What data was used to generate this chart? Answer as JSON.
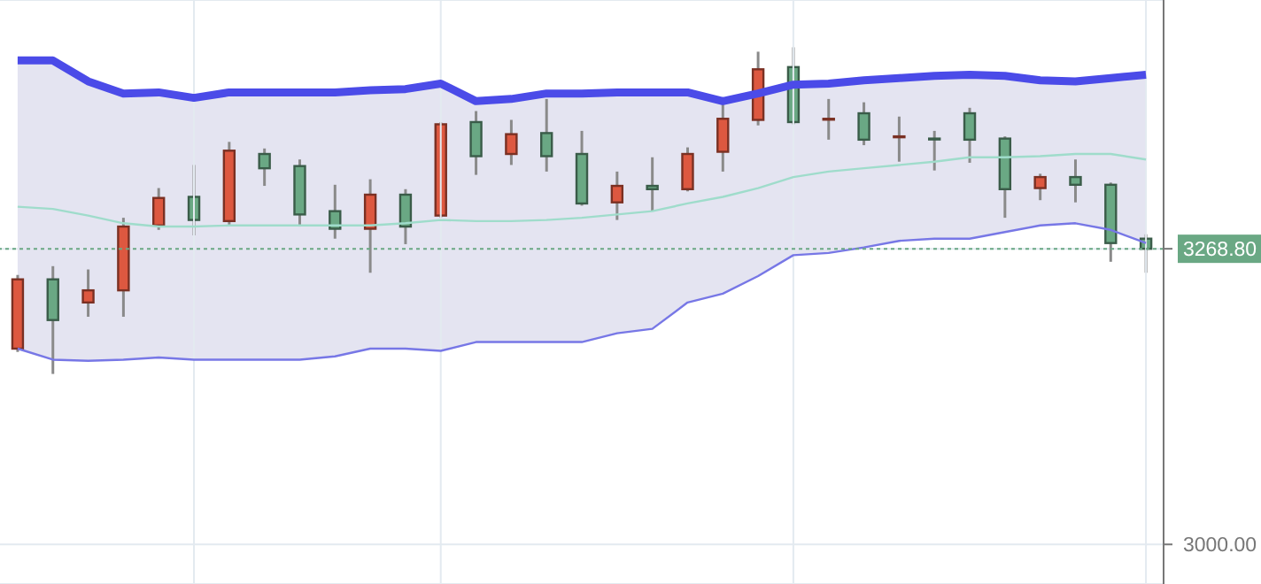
{
  "chart_data": {
    "type": "candlestick",
    "categories": [
      null,
      null,
      null,
      null,
      null,
      null,
      null,
      null,
      null,
      null,
      null,
      null,
      null,
      null,
      null,
      null,
      null,
      null,
      null,
      null,
      null,
      null,
      null,
      null,
      null,
      null,
      null,
      null,
      null,
      null,
      null,
      null,
      null
    ],
    "ohlc": [
      [
        3178,
        3245,
        3175,
        3241
      ],
      [
        3241,
        3253,
        3155,
        3204
      ],
      [
        3220,
        3250,
        3207,
        3231
      ],
      [
        3231,
        3297,
        3207,
        3289
      ],
      [
        3290,
        3324,
        3286,
        3315
      ],
      [
        3316,
        3345,
        3281,
        3295
      ],
      [
        3294,
        3366,
        3290,
        3358
      ],
      [
        3355,
        3360,
        3326,
        3342
      ],
      [
        3344,
        3350,
        3289,
        3300
      ],
      [
        3303,
        3327,
        3278,
        3287
      ],
      [
        3287,
        3332,
        3247,
        3318
      ],
      [
        3318,
        3323,
        3273,
        3289
      ],
      [
        3299,
        3384,
        3297,
        3382
      ],
      [
        3384,
        3394,
        3336,
        3353
      ],
      [
        3355,
        3386,
        3345,
        3373
      ],
      [
        3374,
        3405,
        3339,
        3353
      ],
      [
        3355,
        3376,
        3308,
        3310
      ],
      [
        3311,
        3339,
        3295,
        3326
      ],
      [
        3326,
        3352,
        3303,
        3323
      ],
      [
        3323,
        3361,
        3321,
        3355
      ],
      [
        3357,
        3400,
        3339,
        3387
      ],
      [
        3386,
        3448,
        3381,
        3432
      ],
      [
        3434,
        3452,
        3382,
        3384
      ],
      [
        3387,
        3405,
        3368,
        3387
      ],
      [
        3392,
        3402,
        3363,
        3368
      ],
      [
        3371,
        3389,
        3348,
        3371
      ],
      [
        3369,
        3376,
        3340,
        3369
      ],
      [
        3392,
        3397,
        3347,
        3368
      ],
      [
        3369,
        3371,
        3297,
        3323
      ],
      [
        3324,
        3337,
        3313,
        3334
      ],
      [
        3334,
        3350,
        3311,
        3327
      ],
      [
        3327,
        3329,
        3257,
        3274
      ],
      [
        3278,
        3282,
        3247,
        3268.8
      ]
    ],
    "colors": [
      "#dd5840",
      "#6aa884",
      "#dd5840",
      "#dd5840",
      "#dd5840",
      "#6aa884",
      "#dd5840",
      "#6aa884",
      "#6aa884",
      "#6aa884",
      "#dd5840",
      "#6aa884",
      "#dd5840",
      "#6aa884",
      "#dd5840",
      "#6aa884",
      "#6aa884",
      "#dd5840",
      "#6aa884",
      "#dd5840",
      "#dd5840",
      "#dd5840",
      "#6aa884",
      "#dd5840",
      "#6aa884",
      "#dd5840",
      "#6aa884",
      "#6aa884",
      "#6aa884",
      "#dd5840",
      "#6aa884",
      "#6aa884",
      "#6aa884"
    ],
    "series": [
      {
        "type": "line",
        "color": "#4b4be8",
        "values": [
          3440,
          3440,
          3421,
          3410,
          3411,
          3406,
          3411,
          3411,
          3411,
          3411,
          3413,
          3414,
          3419,
          3403,
          3405,
          3410,
          3410,
          3411,
          3411,
          3411,
          3403,
          3410,
          3418,
          3419,
          3422,
          3424,
          3426,
          3427,
          3426,
          3422,
          3421,
          3424,
          3427
        ]
      },
      {
        "type": "line",
        "color": "#9fdccb",
        "values": [
          3307,
          3305,
          3299,
          3292,
          3289,
          3289,
          3290,
          3290,
          3290,
          3290,
          3290,
          3292,
          3295,
          3294,
          3294,
          3295,
          3297,
          3300,
          3303,
          3310,
          3316,
          3324,
          3334,
          3339,
          3342,
          3345,
          3348,
          3352,
          3352,
          3353,
          3355,
          3355,
          3350
        ],
        "lower": [
          3178,
          3168,
          3167,
          3168,
          3170,
          3168,
          3168,
          3168,
          3168,
          3171,
          3178,
          3178,
          3176,
          3184,
          3184,
          3184,
          3184,
          3192,
          3196,
          3220,
          3228,
          3244,
          3263,
          3265,
          3270,
          3276,
          3278,
          3278,
          3284,
          3290,
          3292,
          3286,
          3274
        ],
        "upper": [
          3440,
          3440,
          3421,
          3410,
          3411,
          3406,
          3411,
          3411,
          3411,
          3411,
          3413,
          3414,
          3419,
          3403,
          3405,
          3410,
          3410,
          3411,
          3411,
          3411,
          3403,
          3410,
          3418,
          3419,
          3422,
          3424,
          3426,
          3427,
          3426,
          3422,
          3421,
          3424,
          3427
        ]
      },
      {
        "type": "line",
        "color": "#7777e6",
        "values": [
          3178,
          3168,
          3167,
          3168,
          3170,
          3168,
          3168,
          3168,
          3168,
          3171,
          3178,
          3178,
          3176,
          3184,
          3184,
          3184,
          3184,
          3192,
          3196,
          3220,
          3228,
          3244,
          3263,
          3265,
          3270,
          3276,
          3278,
          3278,
          3284,
          3290,
          3292,
          3286,
          3274
        ]
      }
    ],
    "ylim": [
      2964,
      3495
    ],
    "yticks": [
      {
        "value": 3000,
        "label": "3000.00"
      },
      {
        "value": 3268.8,
        "label": "3268.80"
      }
    ],
    "ref_lines": [
      {
        "axis": "y",
        "value": 3268.8,
        "color": "#6aa884",
        "line_style": "dotted"
      }
    ],
    "grid": true,
    "tick_labels": "y"
  }
}
